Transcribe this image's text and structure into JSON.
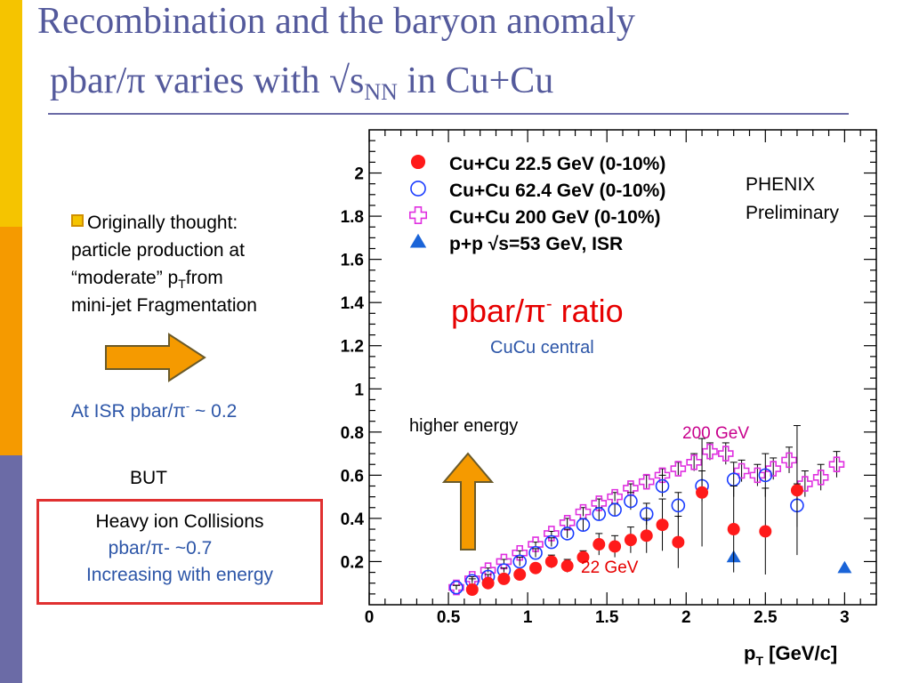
{
  "colors": {
    "bar_top": "#f5c400",
    "bar_mid": "#f59a00",
    "bar_bottom": "#6b6ba6",
    "title": "#545a9c",
    "rule": "#6b6ba6",
    "body_text": "#000000",
    "blue_text": "#2d56a8",
    "red_text": "#e60000",
    "magenta_text": "#c8008c",
    "arrow_fill": "#f59a00",
    "arrow_stroke": "#6a5a2a",
    "box_border": "#e03030",
    "series_22": "#ff1a1a",
    "series_62": "#1a3cff",
    "series_200": "#e030e0",
    "series_pp": "#1a64d8"
  },
  "slide": {
    "title_line1": "Recombination and the baryon anomaly",
    "title_line2_a": "pbar/π varies with √s",
    "title_line2_sub": "NN",
    "title_line2_b": " in Cu+Cu"
  },
  "left": {
    "bullet_line1": "Originally thought:",
    "bullet_line2": "particle production at",
    "bullet_line3a": "“moderate” p",
    "bullet_line3sub": "T",
    "bullet_line3b": "from",
    "bullet_line4": "mini-jet Fragmentation",
    "isr_a": "At ISR pbar/π",
    "isr_sup": "-",
    "isr_b": " ~ 0.2",
    "but": "BUT",
    "heavy_line1": "Heavy ion Collisions",
    "heavy_line2": "pbar/π- ~0.7",
    "heavy_line3": "Increasing with energy"
  },
  "chart_data": {
    "type": "scatter",
    "xlabel": "p",
    "xlabel_sub": "T",
    "xlabel_units": " [GeV/c]",
    "ylabel": "",
    "xlim": [
      0,
      3.2
    ],
    "ylim": [
      0,
      2.2
    ],
    "x_ticks": [
      "0",
      "0.5",
      "1",
      "1.5",
      "2",
      "2.5",
      "3"
    ],
    "y_ticks": [
      "0.2",
      "0.4",
      "0.6",
      "0.8",
      "1",
      "1.2",
      "1.4",
      "1.6",
      "1.8",
      "2"
    ],
    "legend_position": "top-left",
    "annotations": {
      "phenix_1": "PHENIX",
      "phenix_2": "Preliminary",
      "ratio_a": "pbar/π",
      "ratio_sup": "-",
      "ratio_b": " ratio",
      "centrality": "CuCu central",
      "higher_energy": "higher energy",
      "label_200": "200 GeV",
      "label_22": "22 GeV"
    },
    "series": [
      {
        "name": "Cu+Cu 22.5 GeV (0-10%)",
        "marker": "filled-circle",
        "color": "#ff1a1a",
        "x": [
          0.65,
          0.75,
          0.85,
          0.95,
          1.05,
          1.15,
          1.25,
          1.35,
          1.45,
          1.55,
          1.65,
          1.75,
          1.85,
          1.95,
          2.1,
          2.3,
          2.5,
          2.7
        ],
        "y": [
          0.07,
          0.1,
          0.12,
          0.14,
          0.17,
          0.2,
          0.18,
          0.22,
          0.28,
          0.27,
          0.3,
          0.32,
          0.37,
          0.29,
          0.52,
          0.35,
          0.34,
          0.53
        ],
        "err": [
          0.02,
          0.02,
          0.02,
          0.02,
          0.02,
          0.03,
          0.03,
          0.03,
          0.05,
          0.05,
          0.06,
          0.08,
          0.12,
          0.12,
          0.25,
          0.2,
          0.2,
          0.3
        ]
      },
      {
        "name": "Cu+Cu 62.4 GeV (0-10%)",
        "marker": "open-circle",
        "color": "#1a3cff",
        "x": [
          0.55,
          0.65,
          0.75,
          0.85,
          0.95,
          1.05,
          1.15,
          1.25,
          1.35,
          1.45,
          1.55,
          1.65,
          1.75,
          1.85,
          1.95,
          2.1,
          2.3,
          2.5,
          2.7
        ],
        "y": [
          0.08,
          0.11,
          0.13,
          0.16,
          0.2,
          0.24,
          0.29,
          0.33,
          0.37,
          0.42,
          0.44,
          0.48,
          0.42,
          0.55,
          0.46,
          0.55,
          0.58,
          0.6,
          0.46
        ],
        "err": [
          0.01,
          0.01,
          0.01,
          0.01,
          0.02,
          0.02,
          0.02,
          0.02,
          0.03,
          0.03,
          0.03,
          0.04,
          0.05,
          0.05,
          0.06,
          0.07,
          0.08,
          0.1,
          0.1
        ]
      },
      {
        "name": "Cu+Cu 200  GeV (0-10%)",
        "marker": "open-cross",
        "color": "#e030e0",
        "x": [
          0.55,
          0.65,
          0.75,
          0.85,
          0.95,
          1.05,
          1.15,
          1.25,
          1.35,
          1.45,
          1.55,
          1.65,
          1.75,
          1.85,
          1.95,
          2.05,
          2.15,
          2.25,
          2.35,
          2.45,
          2.55,
          2.65,
          2.75,
          2.85,
          2.95
        ],
        "y": [
          0.08,
          0.12,
          0.16,
          0.2,
          0.24,
          0.28,
          0.33,
          0.38,
          0.43,
          0.47,
          0.5,
          0.54,
          0.57,
          0.6,
          0.63,
          0.66,
          0.71,
          0.7,
          0.62,
          0.6,
          0.63,
          0.67,
          0.56,
          0.59,
          0.65
        ],
        "err": [
          0.01,
          0.01,
          0.01,
          0.01,
          0.01,
          0.01,
          0.01,
          0.02,
          0.02,
          0.02,
          0.02,
          0.02,
          0.03,
          0.03,
          0.03,
          0.04,
          0.04,
          0.05,
          0.05,
          0.05,
          0.05,
          0.06,
          0.06,
          0.06,
          0.06
        ]
      },
      {
        "name": "p+p √s=53 GeV, ISR",
        "marker": "filled-triangle",
        "color": "#1a64d8",
        "x": [
          2.3,
          3.0
        ],
        "y": [
          0.22,
          0.17
        ],
        "err": [
          0,
          0
        ]
      }
    ]
  }
}
